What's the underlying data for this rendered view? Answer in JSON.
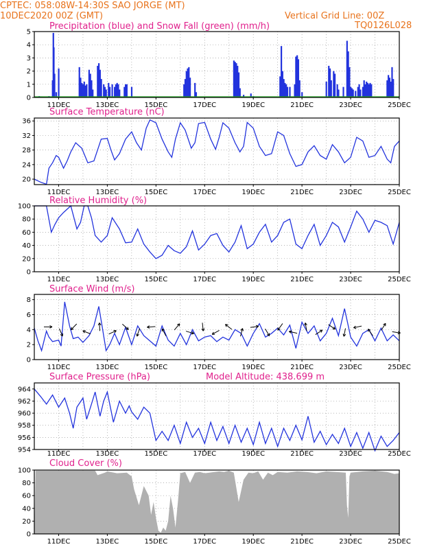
{
  "header": {
    "line1_left": "CPTEC:   058:08W-14:30S  SAO JORGE (MT)",
    "line2_left": "10DEC2020 00Z (GMT)",
    "line2_right": "Vertical Grid Line: 00Z",
    "line3_right": "TQ0126L028"
  },
  "colors": {
    "header": "#e8731c",
    "title": "#e0208c",
    "line": "#2233dd",
    "snow": "#22aa22",
    "cloud": "#b0b0b0"
  },
  "x_axis": {
    "ticks": [
      "11DEC",
      "13DEC",
      "15DEC",
      "17DEC",
      "19DEC",
      "21DEC",
      "23DEC",
      "25DEC"
    ],
    "tick_days": [
      11,
      13,
      15,
      17,
      19,
      21,
      23,
      25
    ],
    "range_days": [
      10,
      25
    ]
  },
  "chart_data": [
    {
      "type": "bar",
      "title": "Precipitation (blue) and Snow Fall (green) (mm/h)",
      "ylim": [
        0,
        5
      ],
      "yticks": [
        0,
        1,
        2,
        3,
        4,
        5
      ],
      "series": [
        {
          "name": "Precipitation",
          "values_at_days": [
            [
              10.15,
              0.05
            ],
            [
              10.2,
              0.1
            ],
            [
              10.3,
              0.08
            ],
            [
              10.55,
              0.05
            ],
            [
              10.6,
              0.1
            ],
            [
              10.65,
              0.05
            ],
            [
              10.75,
              1.3
            ],
            [
              10.78,
              4.9
            ],
            [
              10.8,
              3.8
            ],
            [
              10.83,
              1.8
            ],
            [
              10.9,
              0.4
            ],
            [
              11.0,
              2.2
            ],
            [
              11.85,
              2.3
            ],
            [
              11.9,
              1.5
            ],
            [
              11.95,
              1.1
            ],
            [
              12.0,
              1.0
            ],
            [
              12.05,
              1.2
            ],
            [
              12.1,
              0.9
            ],
            [
              12.15,
              1.0
            ],
            [
              12.25,
              2.1
            ],
            [
              12.3,
              1.8
            ],
            [
              12.35,
              1.3
            ],
            [
              12.4,
              0.6
            ],
            [
              12.6,
              2.4
            ],
            [
              12.65,
              2.6
            ],
            [
              12.7,
              2.1
            ],
            [
              12.75,
              1.4
            ],
            [
              12.85,
              1.0
            ],
            [
              12.9,
              0.8
            ],
            [
              12.95,
              0.6
            ],
            [
              13.05,
              1.1
            ],
            [
              13.1,
              0.8
            ],
            [
              13.2,
              1.0
            ],
            [
              13.3,
              0.8
            ],
            [
              13.35,
              1.0
            ],
            [
              13.4,
              1.1
            ],
            [
              13.45,
              1.0
            ],
            [
              13.5,
              0.6
            ],
            [
              13.7,
              0.8
            ],
            [
              13.75,
              1.0
            ],
            [
              13.8,
              1.0
            ],
            [
              14.0,
              0.8
            ],
            [
              16.15,
              1.0
            ],
            [
              16.2,
              1.4
            ],
            [
              16.25,
              2.0
            ],
            [
              16.3,
              2.2
            ],
            [
              16.35,
              2.3
            ],
            [
              16.4,
              1.5
            ],
            [
              16.6,
              1.1
            ],
            [
              16.65,
              0.4
            ],
            [
              18.2,
              2.8
            ],
            [
              18.25,
              2.7
            ],
            [
              18.3,
              2.6
            ],
            [
              18.35,
              2.4
            ],
            [
              18.4,
              1.9
            ],
            [
              18.45,
              0.7
            ],
            [
              18.6,
              0.2
            ],
            [
              18.9,
              0.3
            ],
            [
              19.0,
              0.1
            ],
            [
              20.1,
              1.6
            ],
            [
              20.15,
              3.9
            ],
            [
              20.2,
              2.0
            ],
            [
              20.25,
              1.4
            ],
            [
              20.3,
              1.1
            ],
            [
              20.35,
              1.0
            ],
            [
              20.4,
              0.8
            ],
            [
              20.5,
              0.8
            ],
            [
              20.7,
              1.0
            ],
            [
              20.75,
              3.1
            ],
            [
              20.8,
              3.2
            ],
            [
              20.85,
              2.9
            ],
            [
              20.9,
              1.3
            ],
            [
              21.0,
              0.4
            ],
            [
              22.0,
              1.2
            ],
            [
              22.1,
              2.4
            ],
            [
              22.15,
              2.2
            ],
            [
              22.2,
              1.3
            ],
            [
              22.3,
              2.0
            ],
            [
              22.35,
              1.8
            ],
            [
              22.45,
              1.0
            ],
            [
              22.5,
              0.6
            ],
            [
              22.7,
              0.8
            ],
            [
              22.85,
              4.3
            ],
            [
              22.9,
              3.5
            ],
            [
              22.95,
              2.3
            ],
            [
              23.0,
              0.8
            ],
            [
              23.05,
              0.7
            ],
            [
              23.1,
              0.6
            ],
            [
              23.2,
              0.5
            ],
            [
              23.3,
              0.8
            ],
            [
              23.35,
              1.0
            ],
            [
              23.4,
              0.6
            ],
            [
              23.5,
              0.8
            ],
            [
              23.55,
              1.3
            ],
            [
              23.6,
              1.0
            ],
            [
              23.65,
              1.2
            ],
            [
              23.7,
              1.1
            ],
            [
              23.75,
              1.0
            ],
            [
              23.8,
              1.1
            ],
            [
              23.85,
              1.0
            ],
            [
              24.5,
              1.3
            ],
            [
              24.55,
              1.7
            ],
            [
              24.6,
              1.5
            ],
            [
              24.65,
              1.2
            ],
            [
              24.7,
              2.3
            ],
            [
              24.75,
              1.4
            ]
          ]
        },
        {
          "name": "Snow Fall",
          "values_at_days": []
        }
      ]
    },
    {
      "type": "line",
      "title": "Surface Temperature (nC)",
      "ylim": [
        18.5,
        36.8
      ],
      "yticks": [
        20,
        24,
        28,
        32,
        36
      ],
      "x_days": [
        10.0,
        10.25,
        10.5,
        10.6,
        10.75,
        10.9,
        11.0,
        11.2,
        11.35,
        11.5,
        11.7,
        11.95,
        12.2,
        12.45,
        12.75,
        13.0,
        13.15,
        13.3,
        13.5,
        13.75,
        14.0,
        14.2,
        14.4,
        14.6,
        14.75,
        15.0,
        15.25,
        15.5,
        15.65,
        15.8,
        16.0,
        16.2,
        16.45,
        16.6,
        16.75,
        17.0,
        17.25,
        17.45,
        17.6,
        17.75,
        18.0,
        18.25,
        18.45,
        18.6,
        18.75,
        19.0,
        19.25,
        19.5,
        19.75,
        20.0,
        20.25,
        20.5,
        20.75,
        21.0,
        21.25,
        21.5,
        21.75,
        22.0,
        22.25,
        22.5,
        22.75,
        23.0,
        23.25,
        23.5,
        23.75,
        24.0,
        24.25,
        24.5,
        24.65,
        24.8,
        25.0
      ],
      "values": [
        20,
        19.2,
        18.6,
        23,
        24.5,
        26.5,
        26,
        23,
        25,
        27.5,
        30,
        28.5,
        24.5,
        25,
        31,
        31.2,
        28,
        25.3,
        27,
        31,
        33,
        30,
        28,
        34,
        36.3,
        35.5,
        31,
        27.5,
        26,
        31,
        35.5,
        33.5,
        28.5,
        30,
        35.3,
        35.6,
        31,
        28.2,
        31.5,
        35.5,
        34,
        30,
        27.5,
        29,
        35.6,
        34,
        29,
        26.5,
        27,
        33,
        32,
        27,
        23.5,
        24,
        27.5,
        29.2,
        26.5,
        25.5,
        29.5,
        27.5,
        24.5,
        26,
        31.5,
        30.5,
        26,
        26.5,
        29,
        25.5,
        24.5,
        29,
        30.5
      ]
    },
    {
      "type": "line",
      "title": "Relative Humidity (%)",
      "ylim": [
        0,
        100
      ],
      "yticks": [
        0,
        20,
        40,
        60,
        80,
        100
      ],
      "x_days": [
        10.0,
        10.25,
        10.5,
        10.7,
        10.85,
        11.0,
        11.2,
        11.5,
        11.75,
        11.9,
        12.05,
        12.2,
        12.35,
        12.5,
        12.75,
        13.0,
        13.2,
        13.5,
        13.75,
        14.0,
        14.25,
        14.5,
        14.75,
        15.0,
        15.25,
        15.5,
        15.75,
        16.0,
        16.25,
        16.5,
        16.75,
        17.0,
        17.25,
        17.5,
        17.75,
        18.0,
        18.25,
        18.5,
        18.75,
        19.0,
        19.25,
        19.5,
        19.75,
        20.0,
        20.25,
        20.5,
        20.75,
        21.0,
        21.25,
        21.5,
        21.75,
        22.0,
        22.25,
        22.5,
        22.75,
        23.0,
        23.25,
        23.5,
        23.75,
        24.0,
        24.25,
        24.5,
        24.75,
        25.0
      ],
      "values": [
        100,
        100,
        100,
        60,
        72,
        82,
        90,
        100,
        65,
        75,
        100,
        100,
        82,
        55,
        45,
        55,
        82,
        65,
        44,
        45,
        65,
        42,
        30,
        20,
        25,
        40,
        32,
        28,
        38,
        62,
        33,
        42,
        55,
        58,
        40,
        30,
        45,
        70,
        35,
        42,
        60,
        72,
        45,
        55,
        75,
        80,
        42,
        35,
        55,
        72,
        40,
        55,
        75,
        68,
        45,
        68,
        92,
        80,
        60,
        78,
        75,
        70,
        42,
        75
      ]
    },
    {
      "type": "line",
      "title": "Surface Wind (m/s)",
      "ylim": [
        0,
        8.7
      ],
      "yticks": [
        0,
        2,
        4,
        6,
        8
      ],
      "x_days": [
        10.0,
        10.15,
        10.3,
        10.5,
        10.6,
        10.75,
        11.0,
        11.1,
        11.25,
        11.45,
        11.6,
        11.8,
        12.0,
        12.25,
        12.45,
        12.65,
        12.8,
        12.95,
        13.1,
        13.3,
        13.5,
        13.75,
        14.0,
        14.25,
        14.5,
        14.75,
        15.0,
        15.25,
        15.5,
        15.75,
        16.0,
        16.25,
        16.5,
        16.75,
        17.0,
        17.25,
        17.5,
        17.75,
        18.0,
        18.25,
        18.5,
        18.75,
        19.0,
        19.25,
        19.5,
        19.75,
        20.0,
        20.25,
        20.5,
        20.75,
        21.0,
        21.25,
        21.5,
        21.75,
        22.0,
        22.25,
        22.5,
        22.75,
        23.0,
        23.25,
        23.5,
        23.75,
        24.0,
        24.25,
        24.5,
        24.75,
        25.0
      ],
      "values": [
        4.2,
        2.5,
        1.2,
        3.8,
        3.0,
        2.4,
        2.6,
        1.8,
        7.7,
        4.5,
        2.8,
        3.0,
        2.3,
        3.2,
        4.5,
        7.1,
        4.2,
        1.2,
        2.0,
        3.5,
        2.0,
        4.3,
        2.0,
        4.5,
        3.2,
        2.5,
        1.8,
        4.5,
        2.6,
        1.8,
        3.5,
        2.0,
        4.0,
        2.5,
        3.0,
        3.2,
        2.4,
        3.0,
        2.6,
        4.0,
        3.5,
        1.8,
        3.5,
        4.8,
        3.0,
        3.5,
        4.2,
        3.3,
        4.6,
        1.5,
        5.0,
        3.5,
        4.5,
        2.5,
        3.5,
        5.5,
        3.2,
        6.8,
        3.0,
        1.8,
        3.5,
        4.0,
        2.5,
        4.2,
        2.5,
        3.3,
        2.5
      ]
    },
    {
      "type": "line",
      "title": "Surface Pressure (hPa)",
      "annotation": "Model Altitude: 438.699  m",
      "ylim": [
        954,
        965
      ],
      "yticks": [
        954,
        956,
        958,
        960,
        962,
        964
      ],
      "x_days": [
        10.0,
        10.25,
        10.5,
        10.75,
        11.0,
        11.25,
        11.45,
        11.6,
        11.75,
        12.0,
        12.15,
        12.35,
        12.5,
        12.7,
        12.85,
        13.0,
        13.25,
        13.5,
        13.75,
        13.9,
        14.0,
        14.25,
        14.5,
        14.75,
        15.0,
        15.25,
        15.5,
        15.75,
        16.0,
        16.25,
        16.5,
        16.75,
        17.0,
        17.25,
        17.5,
        17.75,
        18.0,
        18.25,
        18.5,
        18.75,
        19.0,
        19.25,
        19.5,
        19.75,
        20.0,
        20.25,
        20.5,
        20.75,
        21.0,
        21.25,
        21.5,
        21.75,
        22.0,
        22.25,
        22.5,
        22.75,
        23.0,
        23.25,
        23.5,
        23.75,
        24.0,
        24.25,
        24.5,
        24.75,
        25.0
      ],
      "values": [
        964,
        962.8,
        961.5,
        963,
        961,
        962.5,
        960,
        957.5,
        961,
        962.5,
        959,
        961.5,
        963.5,
        959.5,
        962,
        963.5,
        958.5,
        962,
        960,
        961.2,
        960.2,
        959,
        961,
        960,
        955.5,
        957,
        955.5,
        958,
        955,
        958.5,
        956,
        957.5,
        955,
        958.5,
        955.5,
        957.8,
        955,
        958,
        955.2,
        957.5,
        954.8,
        958.5,
        955,
        957.5,
        954.5,
        957.5,
        955.5,
        958,
        955.6,
        959.5,
        955.2,
        957,
        954.8,
        956.5,
        955,
        957.5,
        954.5,
        956.8,
        954.2,
        956.8,
        953.8,
        956.2,
        954.5,
        955.5,
        956.8
      ]
    },
    {
      "type": "area",
      "title": "Cloud Cover (%)",
      "ylim": [
        0,
        100
      ],
      "yticks": [
        0,
        20,
        40,
        60,
        80,
        100
      ],
      "x_days": [
        10.0,
        10.05,
        12.5,
        12.6,
        12.9,
        13.0,
        13.4,
        13.8,
        14.0,
        14.1,
        14.3,
        14.5,
        14.7,
        14.8,
        14.9,
        15.0,
        15.1,
        15.2,
        15.3,
        15.4,
        15.5,
        15.6,
        15.7,
        15.8,
        15.9,
        16.0,
        16.2,
        16.4,
        16.6,
        16.8,
        17.0,
        17.2,
        17.4,
        17.6,
        17.8,
        18.0,
        18.2,
        18.4,
        18.6,
        18.8,
        19.0,
        19.2,
        19.4,
        19.6,
        19.8,
        20.0,
        20.4,
        20.8,
        21.2,
        21.6,
        22.0,
        22.4,
        22.8,
        22.85,
        22.9,
        22.95,
        23.0,
        23.5,
        24.0,
        24.5,
        24.8,
        25.0
      ],
      "values": [
        0,
        99,
        99,
        92,
        96,
        98,
        95,
        96,
        90,
        70,
        45,
        75,
        60,
        30,
        50,
        25,
        5,
        2,
        10,
        5,
        20,
        60,
        40,
        10,
        50,
        95,
        97,
        80,
        96,
        97,
        95,
        96,
        97,
        98,
        97,
        99,
        96,
        50,
        85,
        96,
        95,
        98,
        85,
        96,
        92,
        97,
        96,
        98,
        97,
        95,
        98,
        97,
        96,
        45,
        25,
        90,
        96,
        98,
        99,
        97,
        94,
        95
      ]
    }
  ]
}
